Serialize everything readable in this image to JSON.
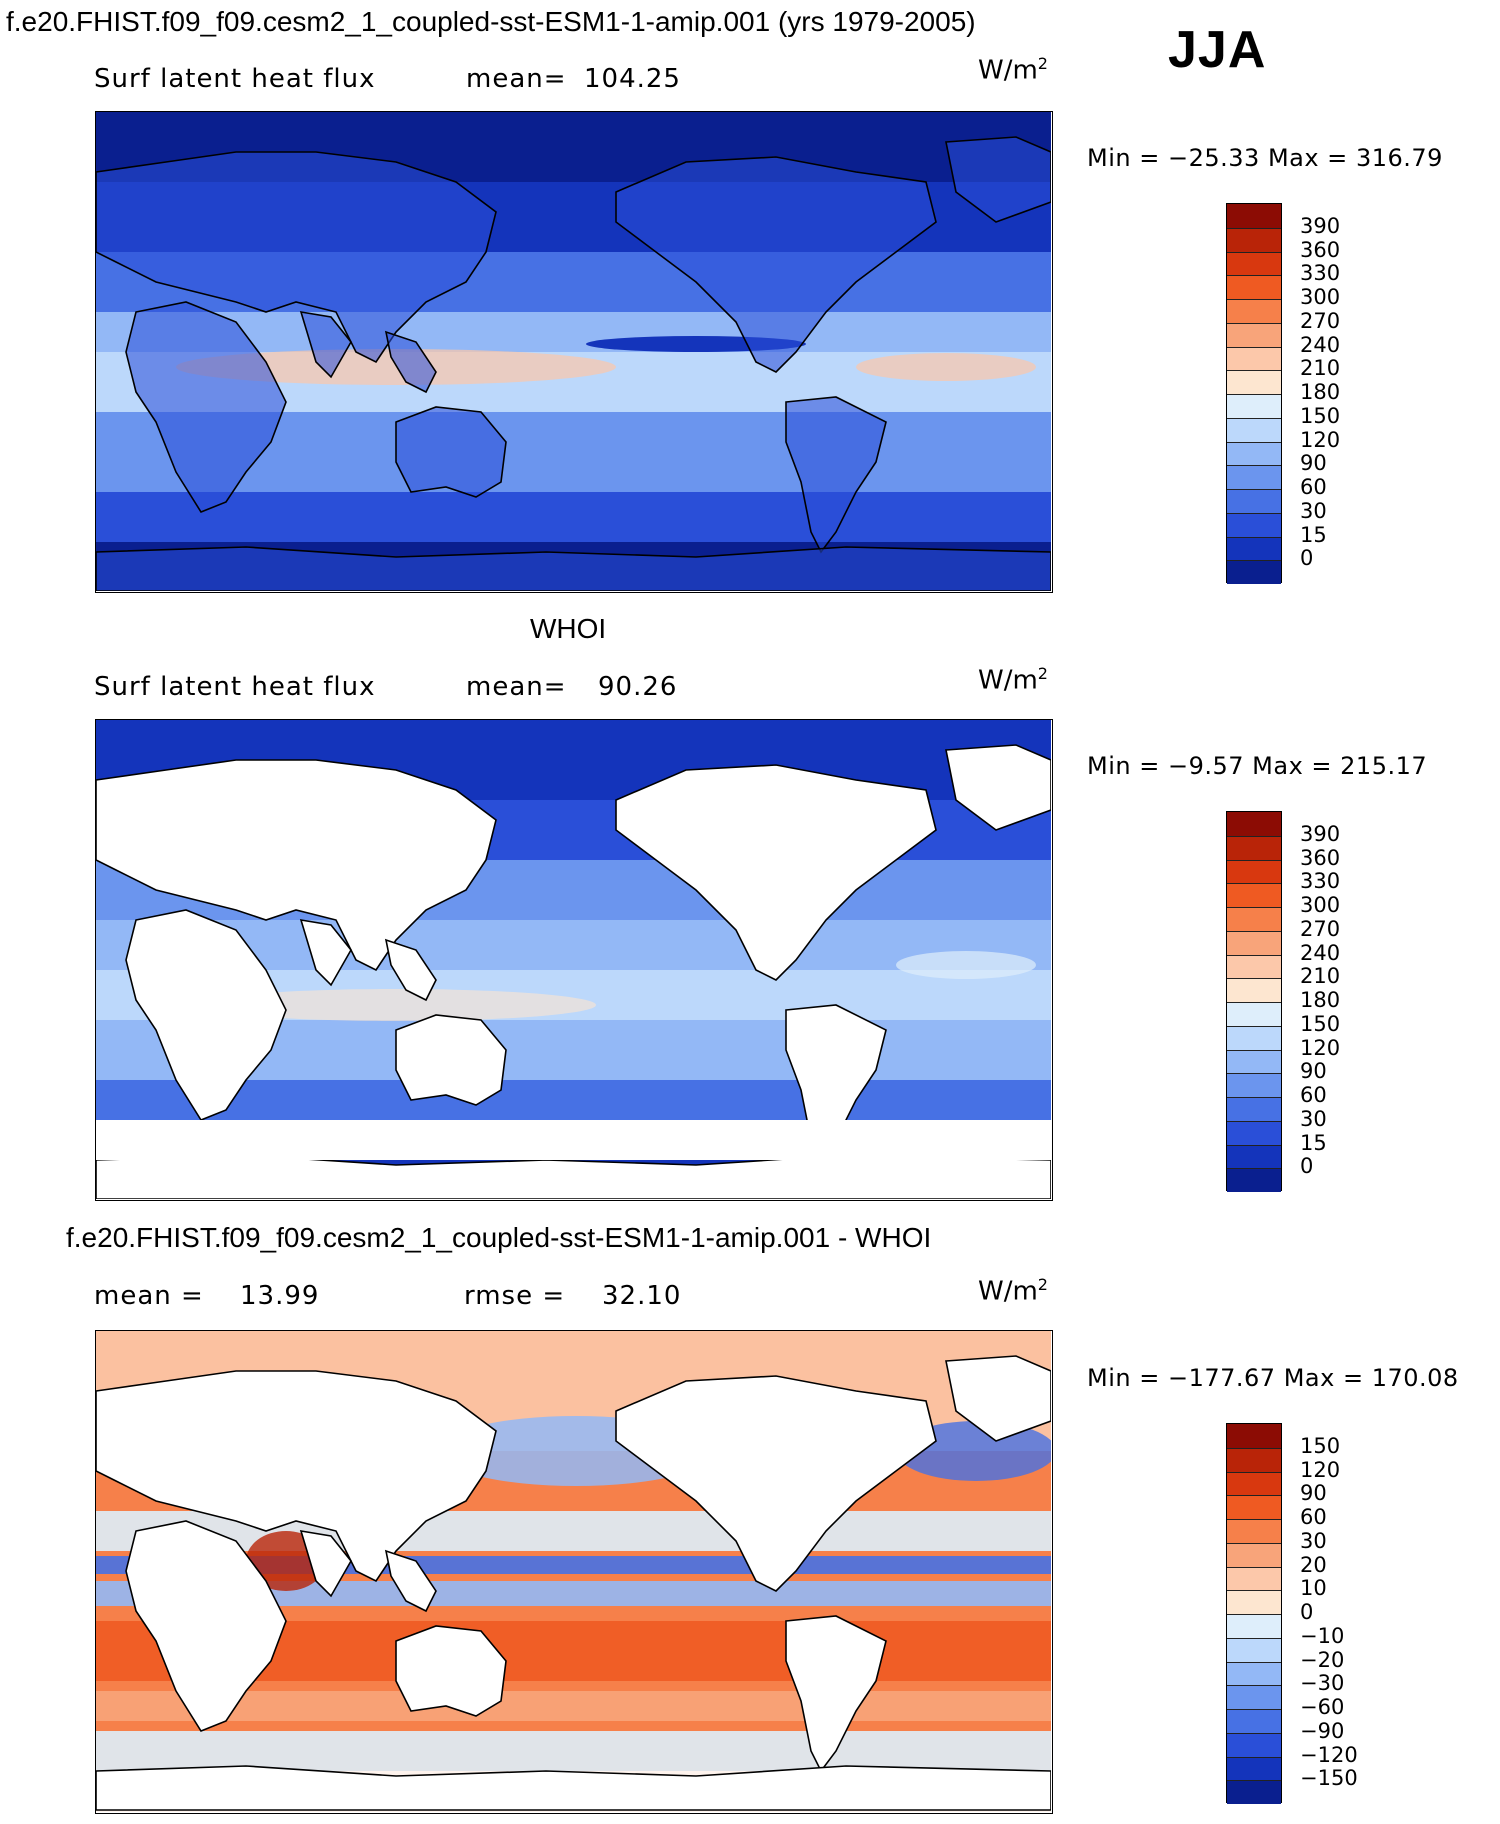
{
  "header": {
    "title": "f.e20.FHIST.f09_f09.cesm2_1_coupled-sst-ESM1-1-amip.001 (yrs 1979-2005)",
    "season": "JJA"
  },
  "panels": [
    {
      "id": "model",
      "heading": "",
      "left_label": "Surf latent heat flux",
      "stat_label": "mean=",
      "stat_value": "104.25",
      "stat2_label": "",
      "stat2_value": "",
      "units_base": "W/m",
      "units_exp": "2",
      "min_label": "Min =",
      "min_value": "−25.33",
      "max_label": "Max =",
      "max_value": "316.79",
      "colorbar": {
        "labels": [
          "390",
          "360",
          "330",
          "300",
          "270",
          "240",
          "210",
          "180",
          "150",
          "120",
          "90",
          "60",
          "30",
          "15",
          "0"
        ],
        "colors": [
          "#8c0c04",
          "#b92408",
          "#d8380f",
          "#ef5a22",
          "#f6804a",
          "#f8a47a",
          "#fcc8aa",
          "#fde6d0",
          "#deeefb",
          "#bcd8fb",
          "#93b8f6",
          "#6b95ee",
          "#4771e4",
          "#2a4fd8",
          "#1434bb",
          "#0a1f8f"
        ]
      },
      "map_style": "model"
    },
    {
      "id": "obs",
      "heading": "WHOI",
      "left_label": "Surf latent heat flux",
      "stat_label": "mean=",
      "stat_value": "90.26",
      "stat2_label": "",
      "stat2_value": "",
      "units_base": "W/m",
      "units_exp": "2",
      "min_label": "Min =",
      "min_value": "−9.57",
      "max_label": "Max =",
      "max_value": "215.17",
      "colorbar": {
        "labels": [
          "390",
          "360",
          "330",
          "300",
          "270",
          "240",
          "210",
          "180",
          "150",
          "120",
          "90",
          "60",
          "30",
          "15",
          "0"
        ],
        "colors": [
          "#8c0c04",
          "#b92408",
          "#d8380f",
          "#ef5a22",
          "#f6804a",
          "#f8a47a",
          "#fcc8aa",
          "#fde6d0",
          "#deeefb",
          "#bcd8fb",
          "#93b8f6",
          "#6b95ee",
          "#4771e4",
          "#2a4fd8",
          "#1434bb",
          "#0a1f8f"
        ]
      },
      "map_style": "obs"
    },
    {
      "id": "diff",
      "heading": "f.e20.FHIST.f09_f09.cesm2_1_coupled-sst-ESM1-1-amip.001 - WHOI",
      "left_label": "",
      "stat_label": "mean =",
      "stat_value": "13.99",
      "stat2_label": "rmse =",
      "stat2_value": "32.10",
      "units_base": "W/m",
      "units_exp": "2",
      "min_label": "Min =",
      "min_value": "−177.67",
      "max_label": "Max =",
      "max_value": "170.08",
      "colorbar": {
        "labels": [
          "150",
          "120",
          "90",
          "60",
          "30",
          "20",
          "10",
          "0",
          "−10",
          "−20",
          "−30",
          "−60",
          "−90",
          "−120",
          "−150"
        ],
        "colors": [
          "#8c0c04",
          "#b92408",
          "#d8380f",
          "#ef5a22",
          "#f6804a",
          "#f8a47a",
          "#fcc8aa",
          "#fde6d0",
          "#deeefb",
          "#bcd8fb",
          "#93b8f6",
          "#6b95ee",
          "#4771e4",
          "#2a4fd8",
          "#1434bb",
          "#0a1f8f"
        ]
      },
      "map_style": "diff"
    }
  ]
}
